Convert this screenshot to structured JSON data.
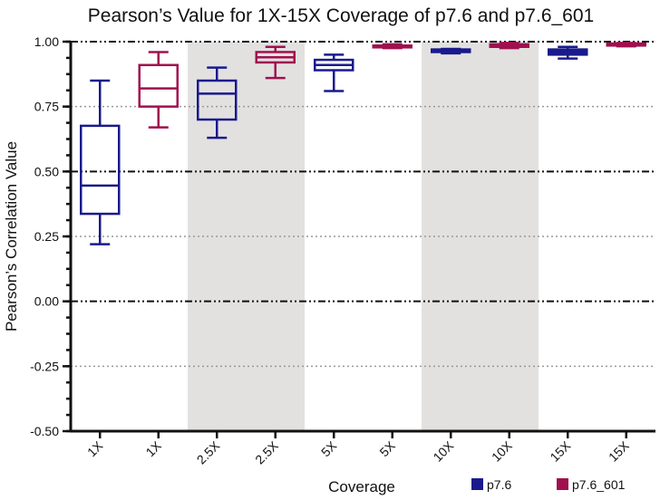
{
  "chart_data": {
    "type": "box",
    "title": "Pearson’s Value for 1X-15X Coverage of p7.6 and p7.6_601",
    "xlabel": "Coverage",
    "ylabel": "Pearson’s Correlation Value",
    "ylim": [
      -0.5,
      1.0
    ],
    "yticks": [
      1.0,
      0.75,
      0.5,
      0.25,
      0.0,
      -0.25,
      -0.5
    ],
    "ytick_labels": [
      "1.00",
      "0.75",
      "0.50",
      "0.25",
      "0.00",
      "-0.25",
      "-0.50"
    ],
    "grid": "horizontal reference lines at major ticks (dash-dot at 1.00, 0.50, 0.00; dotted at 0.75, 0.25, -0.25)",
    "shaded_groups": [
      "2.5X",
      "10X"
    ],
    "legend_position": "bottom-right",
    "series_colors": {
      "p7.6": "#1a1a8c",
      "p7.6_601": "#a0104f"
    },
    "categories": [
      "1X",
      "1X",
      "2.5X",
      "2.5X",
      "5X",
      "5X",
      "10X",
      "10X",
      "15X",
      "15X"
    ],
    "boxes": [
      {
        "category": "1X",
        "series": "p7.6",
        "min": 0.22,
        "q1": 0.337,
        "median": 0.446,
        "q3": 0.676,
        "max": 0.85
      },
      {
        "category": "1X",
        "series": "p7.6_601",
        "min": 0.67,
        "q1": 0.75,
        "median": 0.82,
        "q3": 0.91,
        "max": 0.96
      },
      {
        "category": "2.5X",
        "series": "p7.6",
        "min": 0.63,
        "q1": 0.7,
        "median": 0.8,
        "q3": 0.85,
        "max": 0.9
      },
      {
        "category": "2.5X",
        "series": "p7.6_601",
        "min": 0.86,
        "q1": 0.92,
        "median": 0.94,
        "q3": 0.96,
        "max": 0.98
      },
      {
        "category": "5X",
        "series": "p7.6",
        "min": 0.81,
        "q1": 0.89,
        "median": 0.91,
        "q3": 0.93,
        "max": 0.95
      },
      {
        "category": "5X",
        "series": "p7.6_601",
        "min": 0.975,
        "q1": 0.978,
        "median": 0.98,
        "q3": 0.985,
        "max": 0.99
      },
      {
        "category": "10X",
        "series": "p7.6",
        "min": 0.955,
        "q1": 0.96,
        "median": 0.965,
        "q3": 0.97,
        "max": 0.972
      },
      {
        "category": "10X",
        "series": "p7.6_601",
        "min": 0.975,
        "q1": 0.98,
        "median": 0.985,
        "q3": 0.99,
        "max": 0.995
      },
      {
        "category": "15X",
        "series": "p7.6",
        "min": 0.935,
        "q1": 0.95,
        "median": 0.965,
        "q3": 0.97,
        "max": 0.98
      },
      {
        "category": "15X",
        "series": "p7.6_601",
        "min": 0.982,
        "q1": 0.985,
        "median": 0.99,
        "q3": 0.993,
        "max": 0.995
      }
    ],
    "legend": [
      {
        "label": "p7.6",
        "color": "#1a1a8c"
      },
      {
        "label": "p7.6_601",
        "color": "#a0104f"
      }
    ]
  }
}
